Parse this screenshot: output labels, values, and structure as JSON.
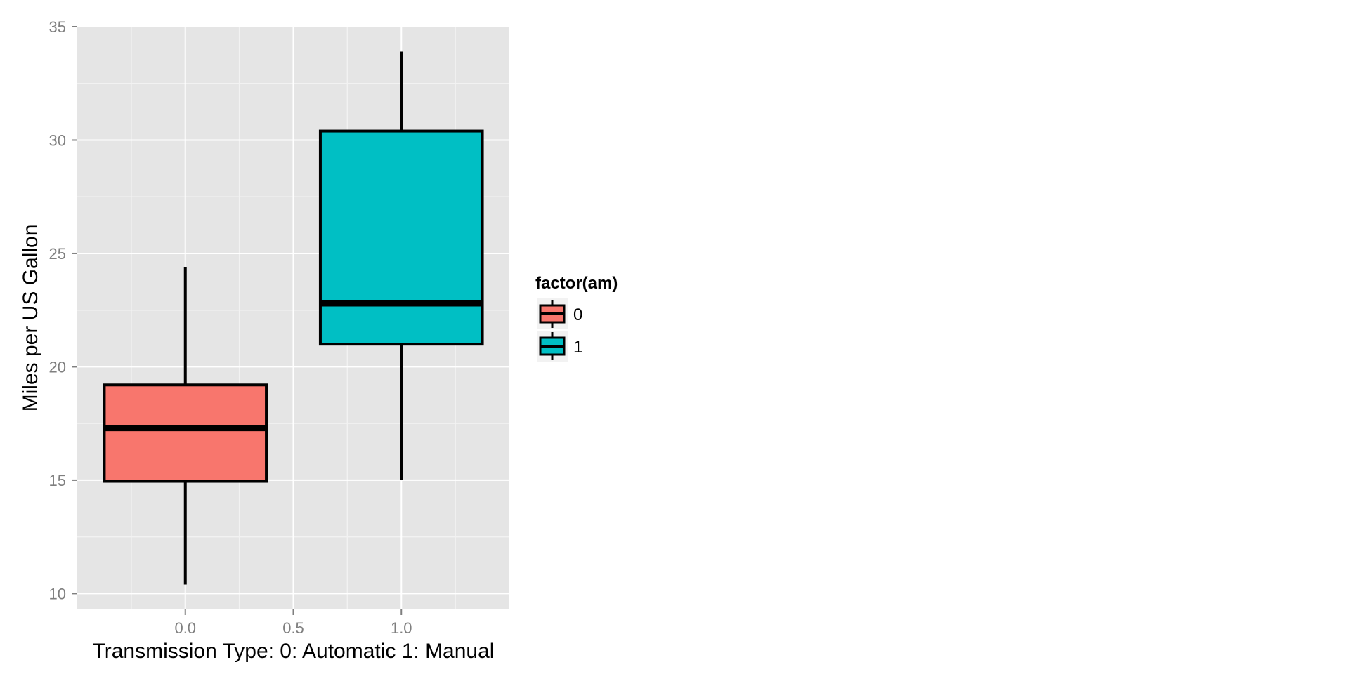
{
  "chart_data": {
    "type": "boxplot",
    "title": "",
    "xlabel": "Transmission Type: 0: Automatic 1: Manual",
    "ylabel": "Miles per US Gallon",
    "xlim": [
      -0.5,
      1.5
    ],
    "ylim": [
      9.3,
      35
    ],
    "x_ticks": [
      0.0,
      0.5,
      1.0
    ],
    "x_tick_labels": [
      "0.0",
      "0.5",
      "1.0"
    ],
    "y_ticks": [
      10,
      15,
      20,
      25,
      30,
      35
    ],
    "y_tick_labels": [
      "10",
      "15",
      "20",
      "25",
      "30",
      "35"
    ],
    "grid": true,
    "legend": {
      "title": "factor(am)",
      "position": "right",
      "entries": [
        "0",
        "1"
      ]
    },
    "series": [
      {
        "name": "0",
        "x": 0.0,
        "min": 10.4,
        "q1": 14.95,
        "median": 17.3,
        "q3": 19.2,
        "max": 24.4,
        "color": "#F8766D"
      },
      {
        "name": "1",
        "x": 1.0,
        "min": 15.0,
        "q1": 21.0,
        "median": 22.8,
        "q3": 30.4,
        "max": 33.9,
        "color": "#00BFC4"
      }
    ],
    "panel_background": "#E5E5E5",
    "grid_color": "#FFFFFF",
    "minor_grid_color": "#F2F2F2"
  }
}
